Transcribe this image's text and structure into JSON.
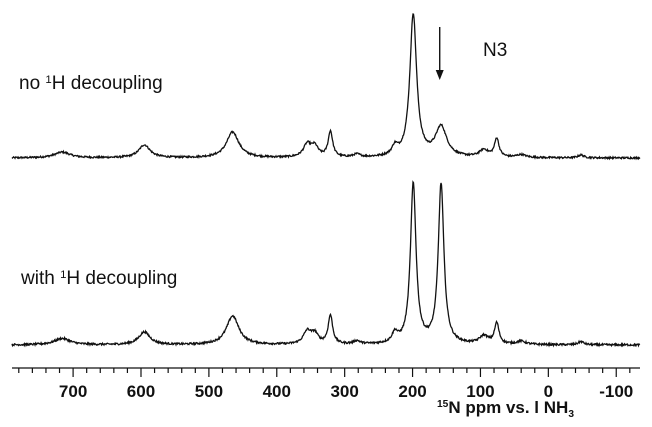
{
  "chart_data": {
    "type": "line",
    "title": "",
    "xlabel": {
      "superscript": "15",
      "text": "N ppm vs. l NH",
      "subscript": "3"
    },
    "ylabel": "",
    "x_reversed": true,
    "xlim": [
      790,
      -135
    ],
    "x_ticks": [
      700,
      600,
      500,
      400,
      300,
      200,
      100,
      0,
      -100
    ],
    "grid": false,
    "series": [
      {
        "label": {
          "before": "no ",
          "superscript": "1",
          "after": "H decoupling"
        },
        "baseline": 1.0,
        "peaks": [
          {
            "ppm": 716,
            "height": 0.04,
            "width": 14
          },
          {
            "ppm": 595,
            "height": 0.09,
            "width": 10
          },
          {
            "ppm": 465,
            "height": 0.18,
            "width": 11
          },
          {
            "ppm": 355,
            "height": 0.09,
            "width": 7
          },
          {
            "ppm": 344,
            "height": 0.07,
            "width": 6
          },
          {
            "ppm": 321,
            "height": 0.18,
            "width": 4
          },
          {
            "ppm": 282,
            "height": 0.02,
            "width": 6
          },
          {
            "ppm": 226,
            "height": 0.06,
            "width": 5
          },
          {
            "ppm": 199,
            "height": 1.0,
            "width": 6
          },
          {
            "ppm": 158,
            "height": 0.21,
            "width": 10
          },
          {
            "ppm": 95,
            "height": 0.05,
            "width": 8
          },
          {
            "ppm": 76,
            "height": 0.13,
            "width": 4
          },
          {
            "ppm": 40,
            "height": 0.02,
            "width": 8
          },
          {
            "ppm": -48,
            "height": 0.02,
            "width": 5
          }
        ]
      },
      {
        "label": {
          "before": "with ",
          "superscript": "1",
          "after": "H decoupling"
        },
        "baseline": 0.0,
        "peaks": [
          {
            "ppm": 716,
            "height": 0.04,
            "width": 14
          },
          {
            "ppm": 595,
            "height": 0.08,
            "width": 10
          },
          {
            "ppm": 465,
            "height": 0.18,
            "width": 11
          },
          {
            "ppm": 355,
            "height": 0.08,
            "width": 7
          },
          {
            "ppm": 344,
            "height": 0.06,
            "width": 6
          },
          {
            "ppm": 321,
            "height": 0.18,
            "width": 4
          },
          {
            "ppm": 282,
            "height": 0.02,
            "width": 6
          },
          {
            "ppm": 226,
            "height": 0.06,
            "width": 5
          },
          {
            "ppm": 199,
            "height": 1.0,
            "width": 5
          },
          {
            "ppm": 158,
            "height": 1.0,
            "width": 5
          },
          {
            "ppm": 95,
            "height": 0.05,
            "width": 8
          },
          {
            "ppm": 76,
            "height": 0.13,
            "width": 4
          },
          {
            "ppm": 40,
            "height": 0.02,
            "width": 8
          },
          {
            "ppm": -48,
            "height": 0.02,
            "width": 5
          }
        ]
      }
    ],
    "annotations": [
      {
        "text": "N3",
        "arrow_ppm": 160
      }
    ],
    "style": {
      "line_color": "#111111",
      "axis_color": "#111111"
    }
  }
}
